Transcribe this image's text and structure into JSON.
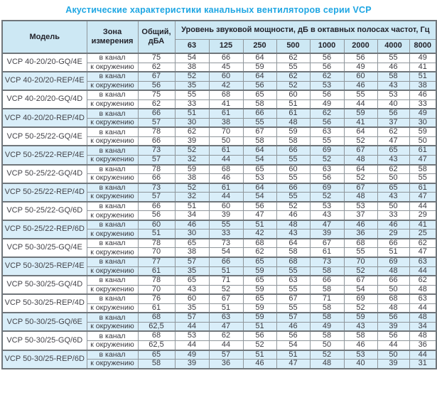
{
  "title": "Акустические характеристики канальных вентиляторов  серии VCP",
  "colors": {
    "title_text": "#1ea6e3",
    "header_bg": "#cde8f4",
    "shaded_row_bg": "#d9eef9",
    "border": "#8f969b",
    "group_border": "#70767b",
    "cell_text": "#3a3a40"
  },
  "table": {
    "headers": {
      "model": "Модель",
      "zone": "Зона измерения",
      "total": "Общий, дБА",
      "spl": "Уровень звуковой мощности, дБ в октавных полосах частот, Гц",
      "frequencies": [
        "63",
        "125",
        "250",
        "500",
        "1000",
        "2000",
        "4000",
        "8000"
      ]
    },
    "zone_labels": {
      "duct": "в канал",
      "ambient": "к окружению"
    },
    "rows": [
      {
        "model": "VCP 40-20/20-GQ/4E",
        "shaded": false,
        "duct": {
          "total": "75",
          "bands": [
            54,
            66,
            64,
            62,
            56,
            56,
            55,
            49
          ]
        },
        "ambient": {
          "total": "62",
          "bands": [
            38,
            45,
            59,
            55,
            56,
            49,
            46,
            41
          ]
        }
      },
      {
        "model": "VCP 40-20/20-REP/4E",
        "shaded": true,
        "duct": {
          "total": "67",
          "bands": [
            52,
            60,
            64,
            62,
            62,
            60,
            58,
            51
          ]
        },
        "ambient": {
          "total": "56",
          "bands": [
            35,
            42,
            56,
            52,
            53,
            46,
            43,
            38
          ]
        }
      },
      {
        "model": "VCP 40-20/20-GQ/4D",
        "shaded": false,
        "duct": {
          "total": "75",
          "bands": [
            55,
            68,
            65,
            60,
            56,
            55,
            53,
            46
          ]
        },
        "ambient": {
          "total": "62",
          "bands": [
            33,
            41,
            58,
            51,
            49,
            44,
            40,
            33
          ]
        }
      },
      {
        "model": "VCP 40-20/20-REP/4D",
        "shaded": true,
        "duct": {
          "total": "66",
          "bands": [
            51,
            61,
            66,
            61,
            62,
            59,
            56,
            49
          ]
        },
        "ambient": {
          "total": "57",
          "bands": [
            30,
            38,
            55,
            48,
            56,
            41,
            37,
            30
          ]
        }
      },
      {
        "model": "VCP 50-25/22-GQ/4E",
        "shaded": false,
        "duct": {
          "total": "78",
          "bands": [
            62,
            70,
            67,
            59,
            63,
            64,
            62,
            59
          ]
        },
        "ambient": {
          "total": "66",
          "bands": [
            39,
            50,
            58,
            58,
            55,
            52,
            47,
            50
          ]
        }
      },
      {
        "model": "VCP 50-25/22-REP/4E",
        "shaded": true,
        "duct": {
          "total": "73",
          "bands": [
            52,
            61,
            64,
            66,
            69,
            67,
            65,
            61
          ]
        },
        "ambient": {
          "total": "57",
          "bands": [
            32,
            44,
            54,
            55,
            52,
            48,
            43,
            47
          ]
        }
      },
      {
        "model": "VCP 50-25/22-GQ/4D",
        "shaded": false,
        "duct": {
          "total": "78",
          "bands": [
            59,
            68,
            65,
            60,
            63,
            64,
            62,
            58
          ]
        },
        "ambient": {
          "total": "66",
          "bands": [
            38,
            46,
            53,
            55,
            56,
            52,
            50,
            55
          ]
        }
      },
      {
        "model": "VCP 50-25/22-REP/4D",
        "shaded": true,
        "duct": {
          "total": "73",
          "bands": [
            52,
            61,
            64,
            66,
            69,
            67,
            65,
            61
          ]
        },
        "ambient": {
          "total": "57",
          "bands": [
            32,
            44,
            54,
            55,
            52,
            48,
            43,
            47
          ]
        }
      },
      {
        "model": "VCP 50-25/22-GQ/6D",
        "shaded": false,
        "duct": {
          "total": "66",
          "bands": [
            51,
            60,
            56,
            52,
            53,
            53,
            50,
            44
          ]
        },
        "ambient": {
          "total": "56",
          "bands": [
            34,
            39,
            47,
            46,
            43,
            37,
            33,
            29
          ]
        }
      },
      {
        "model": "VCP 50-25/22-REP/6D",
        "shaded": true,
        "duct": {
          "total": "60",
          "bands": [
            46,
            55,
            51,
            48,
            47,
            46,
            46,
            41
          ]
        },
        "ambient": {
          "total": "51",
          "bands": [
            30,
            33,
            42,
            43,
            39,
            36,
            29,
            25
          ]
        }
      },
      {
        "model": "VCP 50-30/25-GQ/4E",
        "shaded": false,
        "duct": {
          "total": "78",
          "bands": [
            65,
            73,
            68,
            64,
            67,
            68,
            66,
            62
          ]
        },
        "ambient": {
          "total": "70",
          "bands": [
            38,
            54,
            62,
            58,
            61,
            55,
            51,
            47
          ]
        }
      },
      {
        "model": "VCP 50-30/25-REP/4E",
        "shaded": true,
        "duct": {
          "total": "77",
          "bands": [
            57,
            66,
            65,
            68,
            73,
            70,
            69,
            63
          ]
        },
        "ambient": {
          "total": "61",
          "bands": [
            35,
            51,
            59,
            55,
            58,
            52,
            48,
            44
          ]
        }
      },
      {
        "model": "VCP 50-30/25-GQ/4D",
        "shaded": false,
        "duct": {
          "total": "78",
          "bands": [
            65,
            71,
            65,
            63,
            66,
            67,
            66,
            62
          ]
        },
        "ambient": {
          "total": "70",
          "bands": [
            43,
            52,
            59,
            55,
            58,
            54,
            50,
            48
          ]
        }
      },
      {
        "model": "VCP 50-30/25-REP/4D",
        "shaded": false,
        "duct": {
          "total": "76",
          "bands": [
            60,
            67,
            65,
            67,
            71,
            69,
            68,
            63
          ]
        },
        "ambient": {
          "total": "61",
          "bands": [
            35,
            51,
            59,
            55,
            58,
            52,
            48,
            44
          ]
        }
      },
      {
        "model": "VCP 50-30/25-GQ/6E",
        "shaded": true,
        "duct": {
          "total": "68",
          "bands": [
            57,
            63,
            59,
            57,
            58,
            59,
            56,
            48
          ]
        },
        "ambient": {
          "total": "62,5",
          "bands": [
            44,
            47,
            51,
            46,
            49,
            43,
            39,
            34
          ]
        }
      },
      {
        "model": "VCP 50-30/25-GQ/6D",
        "shaded": false,
        "duct": {
          "total": "68",
          "bands": [
            53,
            62,
            56,
            56,
            58,
            58,
            56,
            48
          ]
        },
        "ambient": {
          "total": "62,5",
          "bands": [
            44,
            44,
            52,
            54,
            50,
            46,
            44,
            36
          ]
        }
      },
      {
        "model": "VCP 50-30/25-REP/6D",
        "shaded": true,
        "duct": {
          "total": "65",
          "bands": [
            49,
            57,
            51,
            51,
            52,
            53,
            50,
            44
          ]
        },
        "ambient": {
          "total": "58",
          "bands": [
            39,
            36,
            46,
            47,
            48,
            40,
            39,
            31
          ]
        }
      }
    ]
  }
}
